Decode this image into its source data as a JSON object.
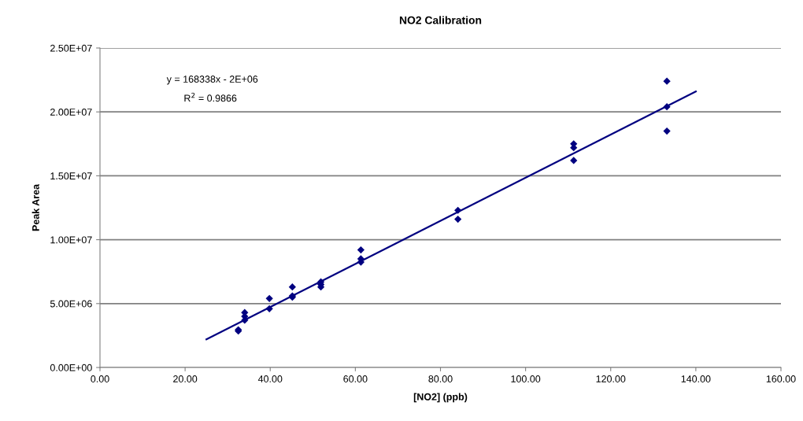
{
  "chart_data": {
    "type": "scatter",
    "title": "NO2 Calibration",
    "xlabel": "[NO2] (ppb)",
    "ylabel": "Peak Area",
    "annotations": [
      "y = 168338x - 2E+06",
      "R$^{2}$ = 0.9866"
    ],
    "series": [
      {
        "color": "#000080",
        "marker": "diamond",
        "x": [
          32.5,
          32.5,
          34,
          34,
          34,
          39.8,
          39.8,
          45.2,
          45.2,
          45.2,
          51.9,
          51.9,
          51.9,
          61.3,
          61.3,
          61.3,
          84.1,
          84.1,
          111.3,
          111.3,
          111.3,
          133.2,
          133.2,
          133.2
        ],
        "values": [
          2950000,
          2850000,
          4300000,
          4000000,
          3700000,
          5400000,
          4600000,
          6300000,
          5600000,
          5500000,
          6700000,
          6500000,
          6300000,
          9200000,
          8500000,
          8250000,
          12300000,
          11600000,
          17500000,
          17200000,
          16200000,
          22400000,
          20400000,
          18500000
        ]
      },
      {
        "type": "line",
        "color": "#000080",
        "marker": "none",
        "x": [
          25,
          140
        ],
        "values": [
          2200000,
          21600000
        ]
      }
    ],
    "xlim": [
      0,
      160
    ],
    "xticks": [
      {
        "value": 0,
        "label": "0.00"
      },
      {
        "value": 20,
        "label": "20.00"
      },
      {
        "value": 40,
        "label": "40.00"
      },
      {
        "value": 60,
        "label": "60.00"
      },
      {
        "value": 80,
        "label": "80.00"
      },
      {
        "value": 100,
        "label": "100.00"
      },
      {
        "value": 120,
        "label": "120.00"
      },
      {
        "value": 140,
        "label": "140.00"
      },
      {
        "value": 160,
        "label": "160.00"
      }
    ],
    "ylim": [
      0,
      25000000
    ],
    "yticks": [
      {
        "value": 0,
        "label": "0.00E+00"
      },
      {
        "value": 5000000,
        "label": "5.00E+06"
      },
      {
        "value": 10000000,
        "label": "1.00E+07"
      },
      {
        "value": 15000000,
        "label": "1.50E+07"
      },
      {
        "value": 20000000,
        "label": "2.00E+07"
      },
      {
        "value": 25000000,
        "label": "2.50E+07"
      }
    ],
    "grid": "y",
    "legend": false
  }
}
